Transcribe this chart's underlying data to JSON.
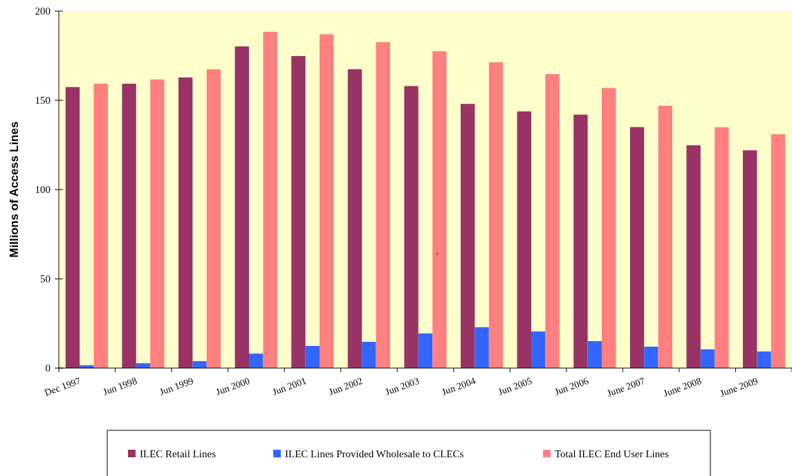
{
  "chart_data": {
    "type": "bar",
    "ylabel": "Millions of Access Lines",
    "categories": [
      "Dec 1997",
      "Jun 1998",
      "Jun 1999",
      "Jun 2000",
      "Jun  2001",
      "Jun 2002",
      "Jun 2003",
      "Jun 2004",
      "Jun 2005",
      "Jun 2006",
      "June 2007",
      "June 2008",
      "June 2009"
    ],
    "series": [
      {
        "name": "ILEC Retail Lines",
        "color": "#993366",
        "values": [
          157.4,
          159.3,
          162.8,
          180.2,
          174.8,
          167.4,
          158,
          148,
          143.8,
          142,
          135,
          124.8,
          122
        ]
      },
      {
        "name": "ILEC Lines Provided Wholesale to CLECs",
        "color": "#3366ff",
        "values": [
          1.6,
          2.7,
          3.9,
          8.1,
          12.4,
          14.7,
          19.4,
          22.9,
          20.5,
          15.1,
          12,
          10.5,
          9.3
        ]
      },
      {
        "name": "Total ILEC End User Lines",
        "color": "#ff8080",
        "values": [
          159.3,
          161.7,
          167.4,
          188.4,
          187,
          182.6,
          177.5,
          171.3,
          164.7,
          156.9,
          147,
          134.9,
          131
        ]
      }
    ],
    "ylim": [
      0,
      200
    ],
    "yticks": [
      0,
      50,
      100,
      150,
      200
    ],
    "grid": false,
    "legend": "bottom",
    "annotations": [
      "`"
    ]
  }
}
